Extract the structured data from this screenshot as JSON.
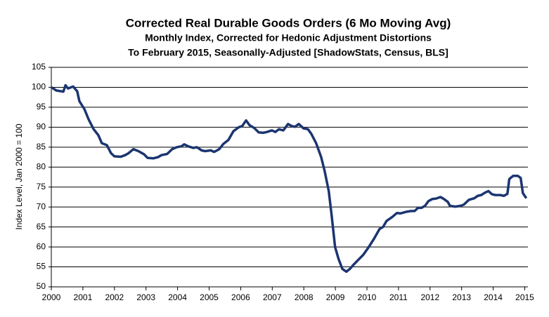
{
  "chart_data": {
    "type": "line",
    "title": "Corrected Real Durable Goods Orders (6 Mo Moving Avg)",
    "subtitle": [
      "Monthly Index, Corrected for Hedonic Adjustment Distortions",
      "To February 2015, Seasonally-Adjusted [ShadowStats, Census, BLS]"
    ],
    "y_label": "Index Level, Jan 2000 = 100",
    "x": [
      2000.0,
      2000.16,
      2000.38,
      2000.45,
      2000.53,
      2000.69,
      2000.82,
      2000.89,
      2001.05,
      2001.18,
      2001.34,
      2001.49,
      2001.6,
      2001.76,
      2001.89,
      2002.0,
      2002.2,
      2002.34,
      2002.45,
      2002.6,
      2002.76,
      2002.94,
      2003.05,
      2003.23,
      2003.38,
      2003.49,
      2003.67,
      2003.83,
      2003.98,
      2004.12,
      2004.21,
      2004.34,
      2004.5,
      2004.61,
      2004.76,
      2004.87,
      2005.05,
      2005.16,
      2005.32,
      2005.45,
      2005.61,
      2005.77,
      2005.94,
      2006.05,
      2006.17,
      2006.28,
      2006.43,
      2006.57,
      2006.72,
      2006.83,
      2006.99,
      2007.1,
      2007.21,
      2007.35,
      2007.5,
      2007.61,
      2007.72,
      2007.84,
      2007.99,
      2008.13,
      2008.24,
      2008.39,
      2008.55,
      2008.66,
      2008.79,
      2008.88,
      2008.99,
      2009.1,
      2009.22,
      2009.35,
      2009.46,
      2009.57,
      2009.73,
      2009.88,
      2010.06,
      2010.22,
      2010.4,
      2010.51,
      2010.62,
      2010.8,
      2010.95,
      2011.06,
      2011.24,
      2011.4,
      2011.51,
      2011.62,
      2011.73,
      2011.84,
      2011.95,
      2012.07,
      2012.18,
      2012.33,
      2012.44,
      2012.56,
      2012.63,
      2012.8,
      2012.96,
      2013.07,
      2013.23,
      2013.4,
      2013.51,
      2013.62,
      2013.74,
      2013.85,
      2013.96,
      2014.07,
      2014.23,
      2014.34,
      2014.45,
      2014.51,
      2014.63,
      2014.78,
      2014.87,
      2014.94,
      2015.05
    ],
    "series": [
      {
        "name": "Corrected Real Durable Goods Orders",
        "color": "#1b3570",
        "values": [
          100,
          99.2,
          98.9,
          100.5,
          99.7,
          100.2,
          99,
          96.5,
          94.5,
          92,
          89.5,
          88,
          86,
          85.5,
          83.5,
          82.7,
          82.6,
          83,
          83.5,
          84.5,
          84,
          83.2,
          82.3,
          82.2,
          82.5,
          83,
          83.3,
          84.5,
          85,
          85.2,
          85.7,
          85.2,
          84.8,
          85,
          84.2,
          84,
          84.2,
          83.8,
          84.5,
          85.8,
          86.8,
          89,
          90,
          90.3,
          91.7,
          90.5,
          89.8,
          88.7,
          88.6,
          88.8,
          89.2,
          88.8,
          89.5,
          89.2,
          90.8,
          90.3,
          90.1,
          90.8,
          89.7,
          89.5,
          88.3,
          86,
          82.5,
          79,
          74,
          68,
          60,
          57,
          54.5,
          53.8,
          54.5,
          55.5,
          56.8,
          58,
          60,
          62,
          64.5,
          65,
          66.5,
          67.5,
          68.5,
          68.4,
          68.8,
          69,
          69,
          69.8,
          69.8,
          70.3,
          71.5,
          72,
          72.1,
          72.5,
          72,
          71.3,
          70.3,
          70.1,
          70.3,
          70.6,
          71.8,
          72.2,
          72.8,
          73,
          73.6,
          74,
          73.2,
          73,
          73,
          72.8,
          73.3,
          77,
          77.8,
          77.8,
          77.3,
          73.5,
          72.2
        ]
      }
    ],
    "xlim": [
      2000,
      2015.1
    ],
    "xticks": [
      2000,
      2001,
      2002,
      2003,
      2004,
      2005,
      2006,
      2007,
      2008,
      2009,
      2010,
      2011,
      2012,
      2013,
      2014,
      2015
    ],
    "ylim": [
      50,
      105
    ],
    "yticks": [
      50,
      55,
      60,
      65,
      70,
      75,
      80,
      85,
      90,
      95,
      100,
      105
    ],
    "grid": true
  }
}
